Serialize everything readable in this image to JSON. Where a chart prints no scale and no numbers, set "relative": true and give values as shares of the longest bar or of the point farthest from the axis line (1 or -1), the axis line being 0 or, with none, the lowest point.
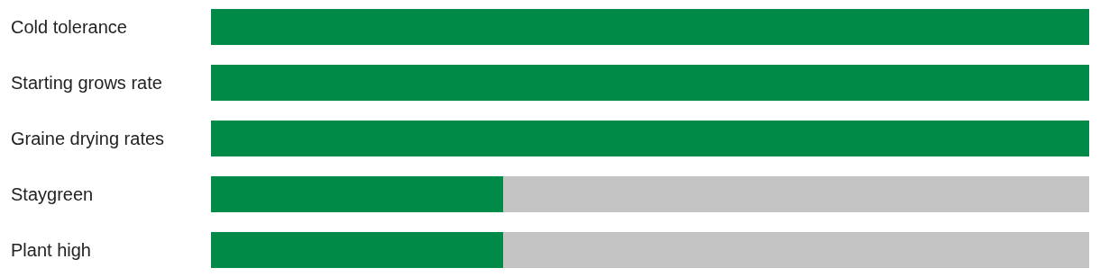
{
  "chart_data": {
    "type": "bar",
    "orientation": "horizontal",
    "stacked": true,
    "relative": true,
    "categories": [
      "Cold tolerance",
      "Starting grows rate",
      "Graine drying rates",
      "Staygreen",
      "Plant high"
    ],
    "series": [
      {
        "color": "#008a48",
        "values": [
          1,
          1,
          1,
          0.333,
          0.333
        ]
      },
      {
        "color": "#c4c4c4",
        "values": [
          0,
          0,
          0,
          0.667,
          0.667
        ]
      }
    ]
  }
}
